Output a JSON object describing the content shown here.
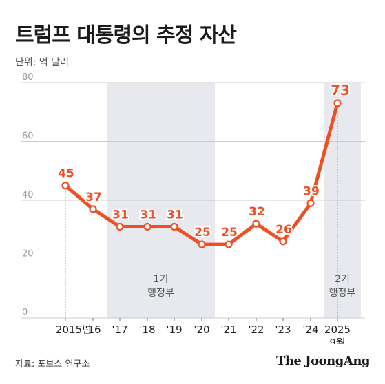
{
  "title": "트럼프 대통령의 추정 자산",
  "unit_label": "단위: 억 달러",
  "source": "자료: 포브스 연구소",
  "brand": "The JoongAng",
  "colors": {
    "line": "#f04e23",
    "label": "#f04e23",
    "shade": "#e7e9ee",
    "grid": "#cccccc",
    "axis_text": "#999999"
  },
  "chart_data": {
    "type": "line",
    "title": "트럼프 대통령의 추정 자산",
    "ylabel": "단위: 억 달러",
    "ylim": [
      0,
      80
    ],
    "yticks": [
      0,
      20,
      40,
      60,
      80
    ],
    "grid": true,
    "categories": [
      "2015년",
      "'16",
      "'17",
      "'18",
      "'19",
      "'20",
      "'21",
      "'22",
      "'23",
      "'24",
      "2025 9월"
    ],
    "tick_labels": [
      "2015년",
      "'16",
      "'17",
      "'18",
      "'19",
      "'20",
      "'21",
      "'22",
      "'23",
      "'24",
      "2025"
    ],
    "tick_sublabels": [
      "",
      "",
      "",
      "",
      "",
      "",
      "",
      "",
      "",
      "",
      "9월"
    ],
    "values": [
      45,
      37,
      31,
      31,
      31,
      25,
      25,
      32,
      26,
      39,
      73
    ],
    "shaded_periods": [
      {
        "label_line1": "1기",
        "label_line2": "행정부"
      },
      {
        "label_line1": "2기",
        "label_line2": "행정부"
      }
    ]
  }
}
